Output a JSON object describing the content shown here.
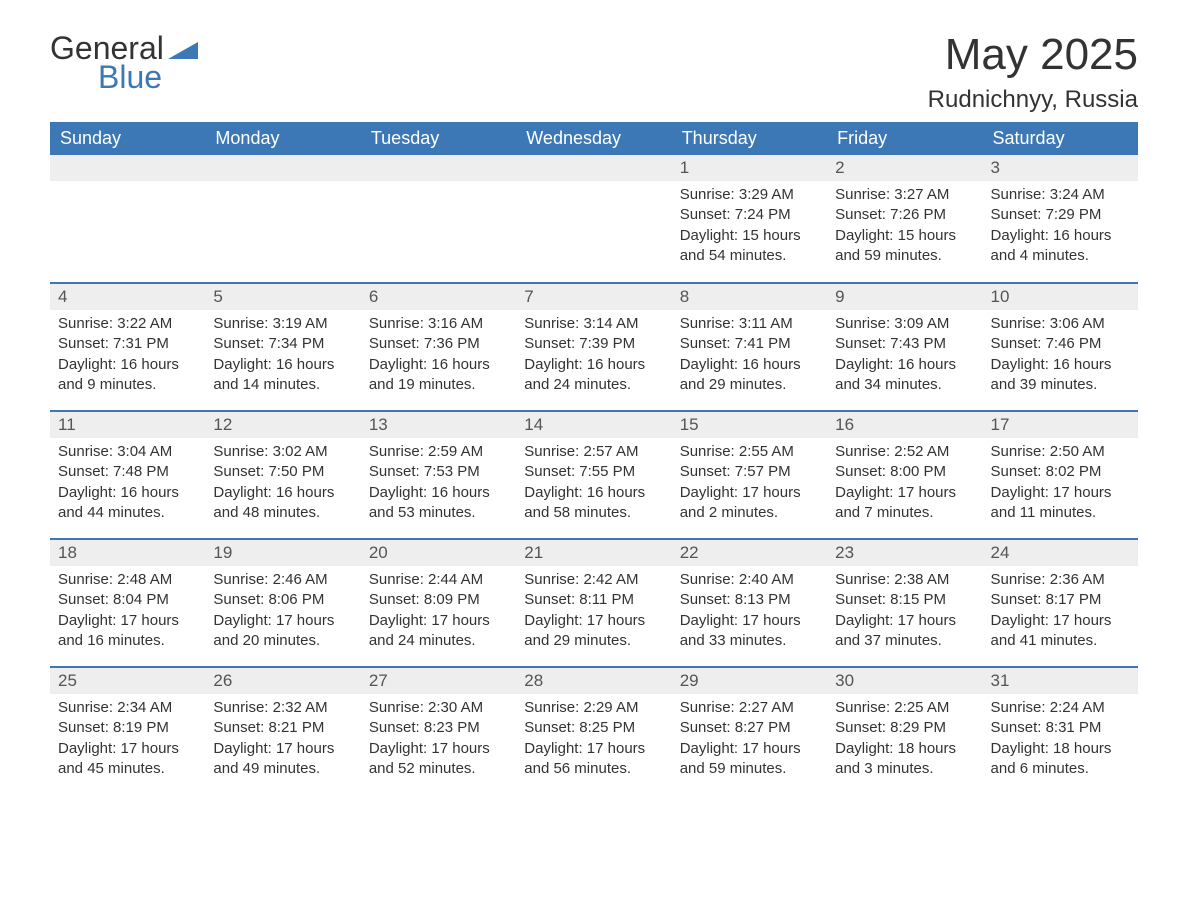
{
  "logo": {
    "text1": "General",
    "text2": "Blue"
  },
  "title": "May 2025",
  "location": "Rudnichnyy, Russia",
  "colors": {
    "header_bg": "#3b78b5",
    "header_text": "#ffffff",
    "day_num_bg": "#eeeeee",
    "border": "#3b78b5",
    "text": "#333333"
  },
  "weekdays": [
    "Sunday",
    "Monday",
    "Tuesday",
    "Wednesday",
    "Thursday",
    "Friday",
    "Saturday"
  ],
  "first_weekday_index": 4,
  "days": [
    {
      "n": 1,
      "sunrise": "3:29 AM",
      "sunset": "7:24 PM",
      "dl": "15 hours and 54 minutes."
    },
    {
      "n": 2,
      "sunrise": "3:27 AM",
      "sunset": "7:26 PM",
      "dl": "15 hours and 59 minutes."
    },
    {
      "n": 3,
      "sunrise": "3:24 AM",
      "sunset": "7:29 PM",
      "dl": "16 hours and 4 minutes."
    },
    {
      "n": 4,
      "sunrise": "3:22 AM",
      "sunset": "7:31 PM",
      "dl": "16 hours and 9 minutes."
    },
    {
      "n": 5,
      "sunrise": "3:19 AM",
      "sunset": "7:34 PM",
      "dl": "16 hours and 14 minutes."
    },
    {
      "n": 6,
      "sunrise": "3:16 AM",
      "sunset": "7:36 PM",
      "dl": "16 hours and 19 minutes."
    },
    {
      "n": 7,
      "sunrise": "3:14 AM",
      "sunset": "7:39 PM",
      "dl": "16 hours and 24 minutes."
    },
    {
      "n": 8,
      "sunrise": "3:11 AM",
      "sunset": "7:41 PM",
      "dl": "16 hours and 29 minutes."
    },
    {
      "n": 9,
      "sunrise": "3:09 AM",
      "sunset": "7:43 PM",
      "dl": "16 hours and 34 minutes."
    },
    {
      "n": 10,
      "sunrise": "3:06 AM",
      "sunset": "7:46 PM",
      "dl": "16 hours and 39 minutes."
    },
    {
      "n": 11,
      "sunrise": "3:04 AM",
      "sunset": "7:48 PM",
      "dl": "16 hours and 44 minutes."
    },
    {
      "n": 12,
      "sunrise": "3:02 AM",
      "sunset": "7:50 PM",
      "dl": "16 hours and 48 minutes."
    },
    {
      "n": 13,
      "sunrise": "2:59 AM",
      "sunset": "7:53 PM",
      "dl": "16 hours and 53 minutes."
    },
    {
      "n": 14,
      "sunrise": "2:57 AM",
      "sunset": "7:55 PM",
      "dl": "16 hours and 58 minutes."
    },
    {
      "n": 15,
      "sunrise": "2:55 AM",
      "sunset": "7:57 PM",
      "dl": "17 hours and 2 minutes."
    },
    {
      "n": 16,
      "sunrise": "2:52 AM",
      "sunset": "8:00 PM",
      "dl": "17 hours and 7 minutes."
    },
    {
      "n": 17,
      "sunrise": "2:50 AM",
      "sunset": "8:02 PM",
      "dl": "17 hours and 11 minutes."
    },
    {
      "n": 18,
      "sunrise": "2:48 AM",
      "sunset": "8:04 PM",
      "dl": "17 hours and 16 minutes."
    },
    {
      "n": 19,
      "sunrise": "2:46 AM",
      "sunset": "8:06 PM",
      "dl": "17 hours and 20 minutes."
    },
    {
      "n": 20,
      "sunrise": "2:44 AM",
      "sunset": "8:09 PM",
      "dl": "17 hours and 24 minutes."
    },
    {
      "n": 21,
      "sunrise": "2:42 AM",
      "sunset": "8:11 PM",
      "dl": "17 hours and 29 minutes."
    },
    {
      "n": 22,
      "sunrise": "2:40 AM",
      "sunset": "8:13 PM",
      "dl": "17 hours and 33 minutes."
    },
    {
      "n": 23,
      "sunrise": "2:38 AM",
      "sunset": "8:15 PM",
      "dl": "17 hours and 37 minutes."
    },
    {
      "n": 24,
      "sunrise": "2:36 AM",
      "sunset": "8:17 PM",
      "dl": "17 hours and 41 minutes."
    },
    {
      "n": 25,
      "sunrise": "2:34 AM",
      "sunset": "8:19 PM",
      "dl": "17 hours and 45 minutes."
    },
    {
      "n": 26,
      "sunrise": "2:32 AM",
      "sunset": "8:21 PM",
      "dl": "17 hours and 49 minutes."
    },
    {
      "n": 27,
      "sunrise": "2:30 AM",
      "sunset": "8:23 PM",
      "dl": "17 hours and 52 minutes."
    },
    {
      "n": 28,
      "sunrise": "2:29 AM",
      "sunset": "8:25 PM",
      "dl": "17 hours and 56 minutes."
    },
    {
      "n": 29,
      "sunrise": "2:27 AM",
      "sunset": "8:27 PM",
      "dl": "17 hours and 59 minutes."
    },
    {
      "n": 30,
      "sunrise": "2:25 AM",
      "sunset": "8:29 PM",
      "dl": "18 hours and 3 minutes."
    },
    {
      "n": 31,
      "sunrise": "2:24 AM",
      "sunset": "8:31 PM",
      "dl": "18 hours and 6 minutes."
    }
  ],
  "labels": {
    "sunrise": "Sunrise:",
    "sunset": "Sunset:",
    "daylight": "Daylight:"
  }
}
